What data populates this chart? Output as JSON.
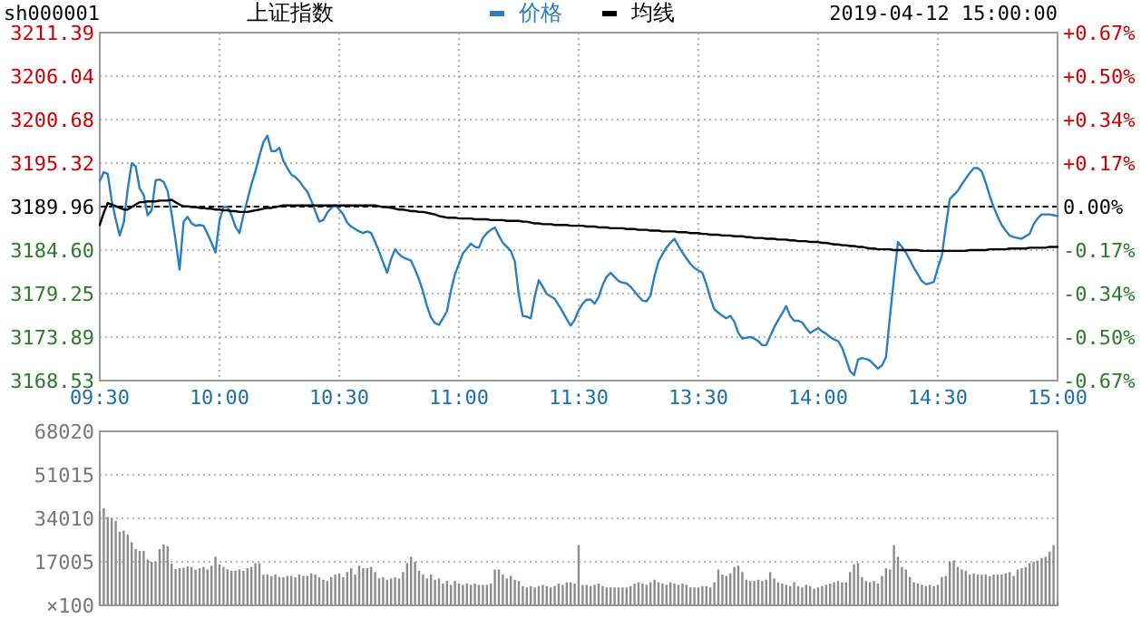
{
  "chart_data": [
    {
      "type": "line",
      "title": "上证指数",
      "annotations": [
        "sh000001",
        "2019-04-12 15:00:00"
      ],
      "legend": "top",
      "grid": true,
      "categories": [
        "09:30",
        null,
        null,
        null,
        null,
        null,
        null,
        null,
        null,
        null,
        null,
        null,
        null,
        null,
        null,
        null,
        null,
        null,
        null,
        null,
        null,
        null,
        null,
        null,
        null,
        null,
        null,
        null,
        null,
        null,
        "10:00",
        null,
        null,
        null,
        null,
        null,
        null,
        null,
        null,
        null,
        null,
        null,
        null,
        null,
        null,
        null,
        null,
        null,
        null,
        null,
        null,
        null,
        null,
        null,
        null,
        null,
        null,
        null,
        null,
        null,
        "10:30",
        null,
        null,
        null,
        null,
        null,
        null,
        null,
        null,
        null,
        null,
        null,
        null,
        null,
        null,
        null,
        null,
        null,
        null,
        null,
        null,
        null,
        null,
        null,
        null,
        null,
        null,
        null,
        null,
        null,
        "11:00",
        null,
        null,
        null,
        null,
        null,
        null,
        null,
        null,
        null,
        null,
        null,
        null,
        null,
        null,
        null,
        null,
        null,
        null,
        null,
        null,
        null,
        null,
        null,
        null,
        null,
        null,
        null,
        null,
        null,
        "11:30",
        null,
        null,
        null,
        null,
        null,
        null,
        null,
        null,
        null,
        null,
        null,
        null,
        null,
        null,
        null,
        null,
        null,
        null,
        null,
        null,
        null,
        null,
        null,
        null,
        null,
        null,
        null,
        null,
        null,
        "13:30",
        null,
        null,
        null,
        null,
        null,
        null,
        null,
        null,
        null,
        null,
        null,
        null,
        null,
        null,
        null,
        null,
        null,
        null,
        null,
        null,
        null,
        null,
        null,
        null,
        null,
        null,
        null,
        null,
        null,
        "14:00",
        null,
        null,
        null,
        null,
        null,
        null,
        null,
        null,
        null,
        null,
        null,
        null,
        null,
        null,
        null,
        null,
        null,
        null,
        null,
        null,
        null,
        null,
        null,
        null,
        null,
        null,
        null,
        null,
        null,
        "14:30",
        null,
        null,
        null,
        null,
        null,
        null,
        null,
        null,
        null,
        null,
        null,
        null,
        null,
        null,
        null,
        null,
        null,
        null,
        null,
        null,
        null,
        null,
        null,
        null,
        null,
        null,
        null,
        null,
        null,
        "15:00"
      ],
      "ylim": [
        3168.53,
        3211.39
      ],
      "yticks": [
        3168.53,
        3173.89,
        3179.25,
        {
          "value": 3184.6,
          "label": "3184.60"
        },
        3189.96,
        3195.32,
        {
          "value": 3200.68,
          "label": "3200.68"
        },
        3206.04,
        3211.39
      ],
      "y2lim": [
        -0.672,
        0.672
      ],
      "y2ticks": [
        {
          "value": -0.672,
          "label": "-0.67%"
        },
        {
          "value": -0.504,
          "label": "-0.50%"
        },
        {
          "value": -0.336,
          "label": "-0.34%"
        },
        {
          "value": -0.168,
          "label": "-0.17%"
        },
        {
          "value": 0,
          "label": "0.00%"
        },
        {
          "value": 0.168,
          "label": "+0.17%"
        },
        {
          "value": 0.336,
          "label": "+0.34%"
        },
        {
          "value": 0.504,
          "label": "+0.50%"
        },
        {
          "value": 0.672,
          "label": "+0.67%"
        }
      ],
      "ref_lines": [
        {
          "axis": "y",
          "value": 3189.96,
          "color": "#000000",
          "line_style": "dashed"
        }
      ],
      "series": [
        {
          "name": "价格",
          "color": "#2a7fc0",
          "values": [
            3193.1,
            3194.2,
            3194.0,
            3190.7,
            3188.4,
            3186.4,
            3188.0,
            3192.1,
            3195.3,
            3194.9,
            3192.2,
            3191.4,
            3188.9,
            3189.5,
            3193.2,
            3193.3,
            3193.0,
            3191.9,
            3189.1,
            3185.8,
            3182.2,
            3188.1,
            3188.7,
            3187.9,
            3187.6,
            3187.7,
            3187.6,
            3186.6,
            3185.5,
            3184.3,
            3188.2,
            3189.9,
            3189.9,
            3188.9,
            3187.5,
            3186.7,
            3188.9,
            3190.8,
            3192.7,
            3194.3,
            3196.2,
            3197.9,
            3198.7,
            3196.8,
            3196.8,
            3197.2,
            3195.6,
            3194.7,
            3193.9,
            3193.6,
            3193.1,
            3192.4,
            3191.8,
            3190.7,
            3189.4,
            3188.1,
            3188.3,
            3189.2,
            3189.8,
            3190.1,
            3189.6,
            3189.0,
            3188.0,
            3187.5,
            3187.2,
            3186.9,
            3186.7,
            3186.9,
            3186.7,
            3185.6,
            3184.4,
            3183.1,
            3181.8,
            3183.5,
            3184.7,
            3184.1,
            3183.7,
            3183.5,
            3183.3,
            3182.2,
            3181.0,
            3179.5,
            3177.7,
            3176.3,
            3175.6,
            3175.4,
            3176.2,
            3177.1,
            3179.6,
            3181.6,
            3182.9,
            3184.2,
            3184.8,
            3185.4,
            3185.0,
            3184.9,
            3186.1,
            3186.7,
            3187.1,
            3187.4,
            3186.4,
            3185.5,
            3185.0,
            3184.5,
            3183.2,
            3179.1,
            3176.5,
            3176.4,
            3176.2,
            3178.9,
            3180.9,
            3180.1,
            3179.2,
            3178.9,
            3178.6,
            3177.8,
            3177.0,
            3176.1,
            3175.3,
            3176.0,
            3177.2,
            3178.0,
            3178.5,
            3178.5,
            3178.0,
            3178.8,
            3180.3,
            3181.3,
            3181.8,
            3181.3,
            3180.8,
            3180.6,
            3180.5,
            3180.1,
            3179.5,
            3178.9,
            3178.4,
            3178.3,
            3179.0,
            3181.4,
            3183.2,
            3184.1,
            3184.9,
            3185.5,
            3186.0,
            3185.1,
            3184.3,
            3183.6,
            3182.9,
            3182.4,
            3182.1,
            3181.8,
            3180.4,
            3178.7,
            3177.3,
            3176.9,
            3176.5,
            3176.2,
            3176.5,
            3175.8,
            3174.4,
            3173.7,
            3173.8,
            3173.9,
            3173.7,
            3173.4,
            3172.9,
            3172.9,
            3174.0,
            3175.1,
            3176.0,
            3176.8,
            3177.7,
            3176.5,
            3175.9,
            3175.9,
            3175.7,
            3175.0,
            3174.4,
            3174.7,
            3175.0,
            3174.6,
            3174.3,
            3173.9,
            3173.6,
            3173.4,
            3172.6,
            3171.2,
            3169.7,
            3169.2,
            3171.1,
            3171.3,
            3171.2,
            3171.0,
            3170.5,
            3170.0,
            3170.4,
            3171.4,
            3176.4,
            3181.1,
            3185.6,
            3185.0,
            3184.3,
            3183.4,
            3182.4,
            3181.6,
            3180.8,
            3180.4,
            3180.5,
            3180.7,
            3182.4,
            3183.9,
            3187.5,
            3190.9,
            3191.4,
            3191.9,
            3192.7,
            3193.4,
            3194.1,
            3194.7,
            3194.7,
            3194.3,
            3192.9,
            3191.3,
            3189.9,
            3188.7,
            3187.7,
            3187.0,
            3186.4,
            3186.2,
            3186.1,
            3186.0,
            3186.3,
            3186.6,
            3187.8,
            3188.5,
            3189.0,
            3189.0,
            3189.0,
            3188.9,
            3188.8
          ]
        },
        {
          "name": "均线",
          "color": "#000000",
          "values": [
            3187.7,
            3189.2,
            3190.4,
            3190.2,
            3190.0,
            3189.8,
            3189.6,
            3189.6,
            3189.9,
            3190.2,
            3190.5,
            3190.5,
            3190.6,
            3190.6,
            3190.6,
            3190.7,
            3190.7,
            3190.7,
            3190.8,
            3190.5,
            3190.2,
            3190.0,
            3190.0,
            3189.9,
            3189.9,
            3189.8,
            3189.8,
            3189.7,
            3189.7,
            3189.6,
            3189.6,
            3189.5,
            3189.5,
            3189.4,
            3189.4,
            3189.3,
            3189.3,
            3189.3,
            3189.4,
            3189.5,
            3189.6,
            3189.7,
            3189.8,
            3189.8,
            3189.9,
            3190.0,
            3190.1,
            3190.1,
            3190.1,
            3190.1,
            3190.1,
            3190.1,
            3190.1,
            3190.1,
            3190.1,
            3190.1,
            3190.1,
            3190.1,
            3190.1,
            3190.1,
            3190.1,
            3190.1,
            3190.1,
            3190.1,
            3190.1,
            3190.1,
            3190.1,
            3190.1,
            3190.1,
            3190.1,
            3190.0,
            3189.9,
            3189.9,
            3189.8,
            3189.7,
            3189.6,
            3189.6,
            3189.5,
            3189.4,
            3189.4,
            3189.3,
            3189.3,
            3189.2,
            3189.1,
            3189.0,
            3188.8,
            3188.7,
            3188.6,
            3188.6,
            3188.6,
            3188.5,
            3188.5,
            3188.5,
            3188.5,
            3188.4,
            3188.4,
            3188.4,
            3188.4,
            3188.3,
            3188.3,
            3188.3,
            3188.3,
            3188.2,
            3188.2,
            3188.2,
            3188.2,
            3188.1,
            3188.1,
            3188.0,
            3187.9,
            3187.9,
            3187.8,
            3187.8,
            3187.8,
            3187.7,
            3187.7,
            3187.7,
            3187.7,
            3187.6,
            3187.6,
            3187.6,
            3187.6,
            3187.5,
            3187.5,
            3187.5,
            3187.4,
            3187.4,
            3187.4,
            3187.3,
            3187.3,
            3187.3,
            3187.3,
            3187.2,
            3187.2,
            3187.2,
            3187.1,
            3187.1,
            3187.1,
            3187.0,
            3187.0,
            3187.0,
            3186.9,
            3186.9,
            3186.9,
            3186.9,
            3186.8,
            3186.8,
            3186.8,
            3186.7,
            3186.7,
            3186.7,
            3186.6,
            3186.6,
            3186.5,
            3186.5,
            3186.5,
            3186.4,
            3186.4,
            3186.4,
            3186.3,
            3186.3,
            3186.3,
            3186.2,
            3186.2,
            3186.1,
            3186.1,
            3186.1,
            3186.0,
            3186.0,
            3186.0,
            3185.9,
            3185.9,
            3185.9,
            3185.8,
            3185.8,
            3185.7,
            3185.7,
            3185.7,
            3185.6,
            3185.6,
            3185.6,
            3185.5,
            3185.5,
            3185.4,
            3185.3,
            3185.3,
            3185.2,
            3185.2,
            3185.1,
            3185.1,
            3185.0,
            3185.0,
            3184.9,
            3184.8,
            3184.8,
            3184.7,
            3184.7,
            3184.7,
            3184.7,
            3184.6,
            3184.6,
            3184.6,
            3184.6,
            3184.6,
            3184.6,
            3184.6,
            3184.5,
            3184.5,
            3184.5,
            3184.5,
            3184.5,
            3184.5,
            3184.5,
            3184.5,
            3184.5,
            3184.5,
            3184.5,
            3184.5,
            3184.6,
            3184.6,
            3184.6,
            3184.6,
            3184.6,
            3184.7,
            3184.7,
            3184.7,
            3184.7,
            3184.7,
            3184.8,
            3184.8,
            3184.8,
            3184.8,
            3184.8,
            3184.9,
            3184.9,
            3184.9,
            3184.9,
            3184.9,
            3185.0,
            3185.0,
            3185.0
          ]
        }
      ]
    },
    {
      "type": "bar",
      "color": "#8c8c8c",
      "grid": "y",
      "ylabel": "×100",
      "ylim": [
        0,
        68020
      ],
      "yticks": [
        {
          "value": 0,
          "label": null
        },
        17005,
        34010,
        51015,
        68020
      ],
      "categories": [
        null,
        null,
        null,
        null,
        null,
        null,
        null,
        null,
        null,
        null,
        null,
        null,
        null,
        null,
        null,
        null,
        null,
        null,
        null,
        null,
        null,
        null,
        null,
        null,
        null,
        null,
        null,
        null,
        null,
        null,
        null,
        null,
        null,
        null,
        null,
        null,
        null,
        null,
        null,
        null,
        null,
        null,
        null,
        null,
        null,
        null,
        null,
        null,
        null,
        null,
        null,
        null,
        null,
        null,
        null,
        null,
        null,
        null,
        null,
        null,
        null,
        null,
        null,
        null,
        null,
        null,
        null,
        null,
        null,
        null,
        null,
        null,
        null,
        null,
        null,
        null,
        null,
        null,
        null,
        null,
        null,
        null,
        null,
        null,
        null,
        null,
        null,
        null,
        null,
        null,
        null,
        null,
        null,
        null,
        null,
        null,
        null,
        null,
        null,
        null,
        null,
        null,
        null,
        null,
        null,
        null,
        null,
        null,
        null,
        null,
        null,
        null,
        null,
        null,
        null,
        null,
        null,
        null,
        null,
        null,
        null,
        null,
        null,
        null,
        null,
        null,
        null,
        null,
        null,
        null,
        null,
        null,
        null,
        null,
        null,
        null,
        null,
        null,
        null,
        null,
        null,
        null,
        null,
        null,
        null,
        null,
        null,
        null,
        null,
        null,
        null,
        null,
        null,
        null,
        null,
        null,
        null,
        null,
        null,
        null,
        null,
        null,
        null,
        null,
        null,
        null,
        null,
        null,
        null,
        null,
        null,
        null,
        null,
        null,
        null,
        null,
        null,
        null,
        null,
        null,
        null,
        null,
        null,
        null,
        null,
        null,
        null,
        null,
        null,
        null,
        null,
        null,
        null,
        null,
        null,
        null,
        null,
        null,
        null,
        null,
        null,
        null,
        null,
        null,
        null,
        null,
        null,
        null,
        null,
        null,
        null,
        null,
        null,
        null,
        null,
        null,
        null,
        null,
        null,
        null,
        null,
        null,
        null,
        null,
        null,
        null,
        null,
        null,
        null,
        null,
        null,
        null,
        null,
        null,
        null,
        null,
        null,
        null,
        null,
        null,
        null
      ],
      "values": [
        36700,
        37900,
        34500,
        34000,
        33000,
        28800,
        29200,
        27700,
        24700,
        22000,
        21300,
        21300,
        17900,
        17000,
        17000,
        22000,
        23800,
        23100,
        16300,
        14100,
        14500,
        14700,
        15200,
        15000,
        14000,
        14500,
        15000,
        14000,
        15500,
        19000,
        16000,
        15000,
        14000,
        13500,
        13500,
        14000,
        13500,
        14500,
        15000,
        16500,
        16500,
        12000,
        12000,
        11500,
        12000,
        11000,
        11000,
        11500,
        11500,
        11000,
        12000,
        11500,
        11500,
        12500,
        12000,
        11000,
        10000,
        9500,
        11000,
        12000,
        12500,
        11000,
        13000,
        14500,
        12000,
        15500,
        14500,
        14500,
        15000,
        13000,
        10500,
        11000,
        10000,
        10500,
        11000,
        10500,
        13000,
        16500,
        19000,
        17000,
        13500,
        12000,
        10500,
        12000,
        10000,
        10500,
        8500,
        9500,
        8000,
        9500,
        8500,
        8000,
        8500,
        8000,
        8500,
        8000,
        8000,
        8000,
        8500,
        14000,
        14000,
        12000,
        10500,
        11500,
        10000,
        9500,
        7500,
        7000,
        7500,
        7000,
        7500,
        8000,
        7500,
        7000,
        7500,
        8500,
        8000,
        9000,
        9000,
        8500,
        23600,
        8000,
        8000,
        7500,
        8000,
        8500,
        7500,
        7000,
        7000,
        7000,
        7000,
        7000,
        7000,
        7500,
        8500,
        9000,
        8500,
        8000,
        9000,
        10000,
        9000,
        8500,
        8000,
        9000,
        8500,
        8000,
        8500,
        8000,
        7000,
        7000,
        7000,
        7500,
        7500,
        7000,
        9000,
        14000,
        12000,
        11500,
        12500,
        15000,
        15500,
        13000,
        10000,
        9500,
        9500,
        10000,
        9500,
        10000,
        13000,
        10500,
        9000,
        8500,
        8000,
        7500,
        9000,
        7500,
        7000,
        8000,
        7500,
        6500,
        7000,
        7500,
        8000,
        8500,
        9000,
        9500,
        9000,
        9000,
        13000,
        16000,
        16500,
        11000,
        9500,
        9000,
        9500,
        8500,
        11500,
        14500,
        14000,
        23500,
        19000,
        15000,
        14000,
        11000,
        9000,
        8500,
        8000,
        7500,
        8000,
        7500,
        8000,
        11000,
        11500,
        17000,
        17500,
        15000,
        14000,
        13500,
        12000,
        12500,
        12000,
        12000,
        12000,
        11500,
        12000,
        12000,
        12000,
        12500,
        13000,
        11500,
        14000,
        14500,
        15000,
        16500,
        17000,
        17500,
        18500,
        19000,
        21000,
        23500,
        1500
      ]
    }
  ]
}
